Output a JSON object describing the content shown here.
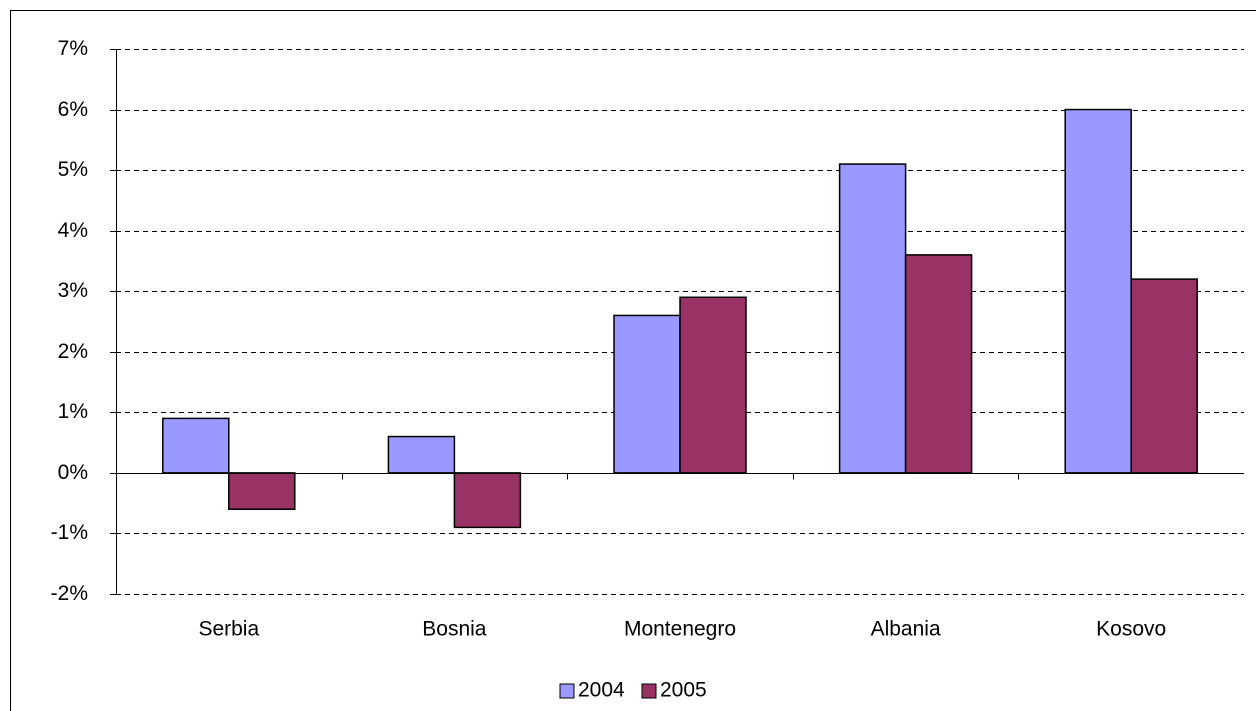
{
  "chart_data": {
    "type": "bar",
    "categories": [
      "Serbia",
      "Bosnia",
      "Montenegro",
      "Albania",
      "Kosovo"
    ],
    "series": [
      {
        "name": "2004",
        "color": "#9999ff",
        "values": [
          0.9,
          0.6,
          2.6,
          5.1,
          6.0
        ]
      },
      {
        "name": "2005",
        "color": "#993366",
        "values": [
          -0.6,
          -0.9,
          2.9,
          3.6,
          3.2
        ]
      }
    ],
    "ylim": [
      -2,
      7
    ],
    "yticks": [
      {
        "value": -2,
        "label": "-2%"
      },
      {
        "value": -1,
        "label": "-1%"
      },
      {
        "value": 0,
        "label": "0%"
      },
      {
        "value": 1,
        "label": "1%"
      },
      {
        "value": 2,
        "label": "2%"
      },
      {
        "value": 3,
        "label": "3%"
      },
      {
        "value": 4,
        "label": "4%"
      },
      {
        "value": 5,
        "label": "5%"
      },
      {
        "value": 6,
        "label": "6%"
      },
      {
        "value": 7,
        "label": "7%"
      }
    ],
    "grid": true,
    "legend": "bottom"
  }
}
